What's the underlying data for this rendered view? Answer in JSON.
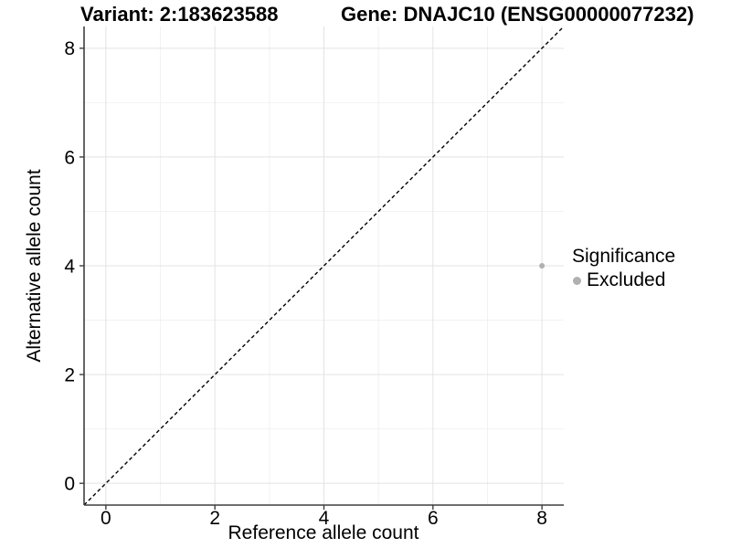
{
  "chart_data": {
    "type": "scatter",
    "titles": [
      "Variant: 2:183623588",
      "Gene: DNAJC10 (ENSG00000077232)"
    ],
    "xlabel": "Reference allele count",
    "ylabel": "Alternative allele count",
    "xlim": [
      -0.4,
      8.4
    ],
    "ylim": [
      -0.4,
      8.4
    ],
    "xticks": [
      0,
      2,
      4,
      6,
      8
    ],
    "yticks": [
      0,
      2,
      4,
      6,
      8
    ],
    "minor_xticks": [
      1,
      3,
      5,
      7
    ],
    "minor_yticks": [
      1,
      3,
      5,
      7
    ],
    "grid": true,
    "legend_position": "right",
    "legend": {
      "title": "Significance",
      "items": [
        {
          "label": "Excluded",
          "color": "#b0b0b0"
        }
      ]
    },
    "series": [
      {
        "name": "Excluded",
        "color": "#b0b0b0",
        "points": [
          {
            "x": 8,
            "y": 4
          }
        ]
      }
    ],
    "reference_line": {
      "kind": "identity",
      "from": [
        -0.4,
        -0.4
      ],
      "to": [
        8.4,
        8.4
      ],
      "style": "dashed",
      "color": "#000000"
    },
    "colors": {
      "background": "#ffffff",
      "grid_major": "#e3e3e3",
      "grid_minor": "#f2f2f2",
      "axis_line": "#3f3f3f",
      "text": "#000000",
      "point": "#b0b0b0"
    }
  }
}
